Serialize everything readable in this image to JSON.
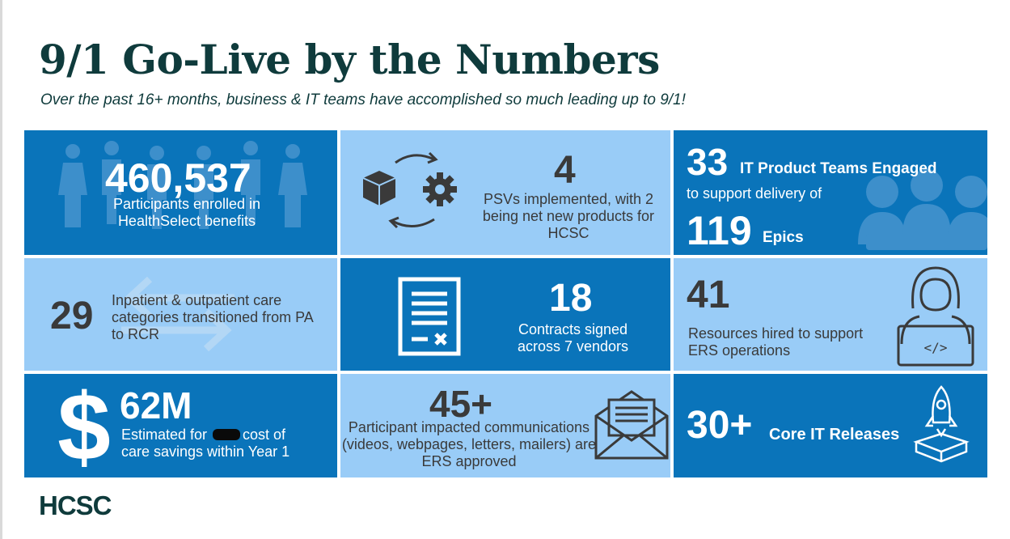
{
  "title": "9/1 Go-Live by the Numbers",
  "subtitle": "Over the past 16+ months, business & IT teams have accomplished so much leading up to 9/1!",
  "colors": {
    "dark_blue": "#0a74ba",
    "light_blue": "#99ccf7",
    "title_green": "#0f3b3c"
  },
  "tiles": {
    "participants": {
      "number": "460,537",
      "text": "Participants enrolled in HealthSelect benefits",
      "icon": "people-icon"
    },
    "psvs": {
      "number": "4",
      "text": "PSVs implemented, with 2 being net new products for HCSC",
      "icon": "box-gear-cycle-icon"
    },
    "teams": {
      "number": "33",
      "label": "IT Product Teams Engaged",
      "text": "to support delivery of",
      "number2": "119",
      "label2": "Epics",
      "icon": "team-meeting-icon"
    },
    "categories": {
      "number": "29",
      "text": "Inpatient & outpatient care categories transitioned from PA to RCR",
      "icon": "swap-arrows-icon"
    },
    "contracts": {
      "number": "18",
      "text": "Contracts signed across 7 vendors",
      "icon": "contract-document-icon"
    },
    "resources": {
      "number": "41",
      "text": "Resources hired to support ERS operations",
      "icon": "developer-laptop-icon"
    },
    "savings": {
      "number": "62M",
      "text_before": "Estimated for",
      "text_after": "cost of care savings within Year 1",
      "icon": "dollar-sign-icon"
    },
    "communications": {
      "number": "45+",
      "text": "Participant impacted communications (videos, webpages, letters, mailers) are ERS approved",
      "icon": "envelope-letter-icon"
    },
    "releases": {
      "number": "30+",
      "label": "Core IT Releases",
      "icon": "rocket-box-icon"
    }
  },
  "logo": "HCSC"
}
